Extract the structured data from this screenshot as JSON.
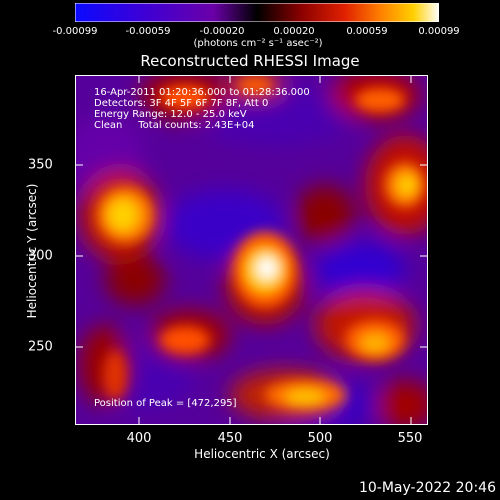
{
  "colorbar": {
    "tick_labels": [
      "-0.00099",
      "-0.00059",
      "-0.00020",
      "0.00020",
      "0.00059",
      "0.00099"
    ],
    "units": "(photons cm⁻² s⁻¹ asec⁻²)",
    "colors": [
      "#0a0aff",
      "#3b00d8",
      "#6a00a8",
      "#000000",
      "#8a0000",
      "#e02000",
      "#ff8000",
      "#ffd000",
      "#ffffff"
    ]
  },
  "title": "Reconstructed RHESSI Image",
  "info_lines": [
    "16-Apr-2011 01:20:36.000 to 01:28:36.000",
    "Detectors: 3F 4F 5F 6F 7F 8F, Att 0",
    "Energy Range: 12.0 - 25.0 keV",
    "Clean     Total counts: 2.43E+04"
  ],
  "peak_text": "Position of Peak = [472,295]",
  "axes": {
    "x_label": "Heliocentric X (arcsec)",
    "y_label": "Heliocentric Y (arcsec)",
    "x_ticks": [
      "400",
      "450",
      "500",
      "550"
    ],
    "y_ticks": [
      "350",
      "300",
      "250"
    ],
    "x_range": [
      365,
      560
    ],
    "y_range": [
      205,
      400
    ]
  },
  "datestamp": "10-May-2022 20:46"
}
